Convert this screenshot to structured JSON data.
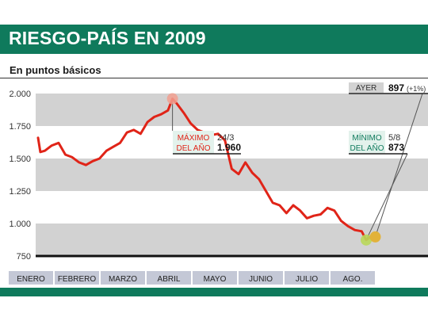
{
  "header": {
    "title": "RIESGO-PAÍS EN 2009",
    "subtitle": "En puntos básicos"
  },
  "colors": {
    "brand": "#0f7a5c",
    "line": "#e02418",
    "band": "#d2d2d2",
    "max_marker": "#f2a090",
    "min_marker": "#b9d85a",
    "last_marker": "#e2b23a",
    "annotation_label_bg": "#e3f2ec",
    "annotation_label_text": "#e02418",
    "annotation_min_text": "#0f7a5c"
  },
  "annotations": {
    "max": {
      "label_line1": "MÁXIMO",
      "label_line2": "DEL AÑO",
      "date": "24/3",
      "value": "1.960"
    },
    "min": {
      "label_line1": "MÍNIMO",
      "label_line2": "DEL AÑO",
      "date": "5/8",
      "value": "873"
    },
    "last": {
      "label": "AYER",
      "value": "897",
      "change": "(+1%)"
    }
  },
  "chart_data": {
    "type": "line",
    "title": "RIESGO-PAÍS EN 2009",
    "subtitle": "En puntos básicos",
    "xlabel": "",
    "ylabel": "",
    "ylim": [
      750,
      2000
    ],
    "y_ticks": [
      "2.000",
      "1.750",
      "1.500",
      "1.250",
      "1.000",
      "750"
    ],
    "y_tick_values": [
      2000,
      1750,
      1500,
      1250,
      1000,
      750
    ],
    "categories": [
      "ENERO",
      "FEBRERO",
      "MARZO",
      "ABRIL",
      "MAYO",
      "JUNIO",
      "JULIO",
      "AGO."
    ],
    "grid": "alternating horizontal bands",
    "series": [
      {
        "x": [
          0.0,
          0.05,
          0.15,
          0.3,
          0.45,
          0.6,
          0.75,
          0.9,
          1.05,
          1.2,
          1.35,
          1.5,
          1.65,
          1.8,
          1.95,
          2.1,
          2.25,
          2.4,
          2.55,
          2.7,
          2.85,
          2.95,
          3.05,
          3.2,
          3.35,
          3.5,
          3.65,
          3.8,
          3.95,
          4.1,
          4.25,
          4.4,
          4.55,
          4.7,
          4.85,
          5.0,
          5.15,
          5.3,
          5.45,
          5.6,
          5.75,
          5.9,
          6.05,
          6.2,
          6.35,
          6.5,
          6.65,
          6.8,
          6.95,
          7.1,
          7.2,
          7.3,
          7.4
        ],
        "values": [
          1660,
          1550,
          1560,
          1600,
          1620,
          1530,
          1510,
          1470,
          1450,
          1480,
          1500,
          1560,
          1590,
          1620,
          1700,
          1720,
          1690,
          1780,
          1820,
          1840,
          1870,
          1960,
          1920,
          1850,
          1770,
          1720,
          1700,
          1680,
          1690,
          1640,
          1420,
          1380,
          1470,
          1390,
          1340,
          1250,
          1160,
          1140,
          1080,
          1140,
          1100,
          1040,
          1060,
          1070,
          1120,
          1100,
          1020,
          980,
          950,
          940,
          873,
          900,
          897
        ]
      }
    ]
  }
}
